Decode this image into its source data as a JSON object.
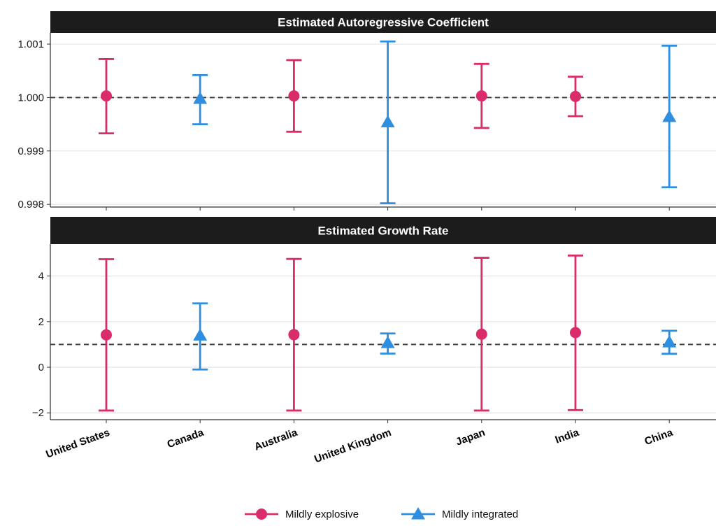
{
  "colors": {
    "explosive": "#DA2B6A",
    "integrated": "#2E8EDF",
    "strip": "#1c1c1c",
    "grid": "#e4e4e4",
    "refline": "#3a3a3a"
  },
  "chart_data": {
    "type": "errorbar-facets",
    "categories": [
      "United States",
      "Canada",
      "Australia",
      "United Kingdom",
      "Japan",
      "India",
      "China"
    ],
    "legend": {
      "position": "bottom",
      "items": [
        {
          "label": "Mildly explosive",
          "marker": "circle",
          "color": "#DA2B6A"
        },
        {
          "label": "Mildly integrated",
          "marker": "triangle",
          "color": "#2E8EDF"
        }
      ]
    },
    "panels": [
      {
        "title": "Estimated Autoregressive Coefficient",
        "ylim": [
          0.99795,
          1.00121
        ],
        "yticks": [
          0.998,
          0.999,
          1.0,
          1.001
        ],
        "ytick_labels": [
          "0.998",
          "0.999",
          "1.000",
          "1.001"
        ],
        "reference_line": 1.0,
        "grid": true,
        "points": [
          {
            "country": "United States",
            "group": "Mildly explosive",
            "estimate": 1.00003,
            "lower": 0.99933,
            "upper": 1.00072
          },
          {
            "country": "Canada",
            "group": "Mildly integrated",
            "estimate": 0.99998,
            "lower": 0.9995,
            "upper": 1.00042
          },
          {
            "country": "Australia",
            "group": "Mildly explosive",
            "estimate": 1.00003,
            "lower": 0.99936,
            "upper": 1.0007
          },
          {
            "country": "United Kingdom",
            "group": "Mildly integrated",
            "estimate": 0.99954,
            "lower": 0.99802,
            "upper": 1.00105
          },
          {
            "country": "Japan",
            "group": "Mildly explosive",
            "estimate": 1.00003,
            "lower": 0.99943,
            "upper": 1.00063
          },
          {
            "country": "India",
            "group": "Mildly explosive",
            "estimate": 1.00002,
            "lower": 0.99965,
            "upper": 1.00039
          },
          {
            "country": "China",
            "group": "Mildly integrated",
            "estimate": 0.99964,
            "lower": 0.99832,
            "upper": 1.00097
          }
        ]
      },
      {
        "title": "Estimated Growth Rate",
        "ylim": [
          -2.3,
          5.4
        ],
        "yticks": [
          -2,
          0,
          2,
          4
        ],
        "ytick_labels": [
          "−2",
          "0",
          "2",
          "4"
        ],
        "reference_line": 1.0,
        "grid": true,
        "points": [
          {
            "country": "United States",
            "group": "Mildly explosive",
            "estimate": 1.42,
            "lower": -1.9,
            "upper": 4.74
          },
          {
            "country": "Canada",
            "group": "Mildly integrated",
            "estimate": 1.4,
            "lower": -0.1,
            "upper": 2.8
          },
          {
            "country": "Australia",
            "group": "Mildly explosive",
            "estimate": 1.43,
            "lower": -1.9,
            "upper": 4.75
          },
          {
            "country": "United Kingdom",
            "group": "Mildly integrated",
            "estimate": 1.07,
            "lower": 0.6,
            "upper": 1.48
          },
          {
            "country": "Japan",
            "group": "Mildly explosive",
            "estimate": 1.45,
            "lower": -1.9,
            "upper": 4.8
          },
          {
            "country": "India",
            "group": "Mildly explosive",
            "estimate": 1.52,
            "lower": -1.88,
            "upper": 4.9
          },
          {
            "country": "China",
            "group": "Mildly integrated",
            "estimate": 1.1,
            "lower": 0.59,
            "upper": 1.6
          }
        ]
      }
    ]
  }
}
